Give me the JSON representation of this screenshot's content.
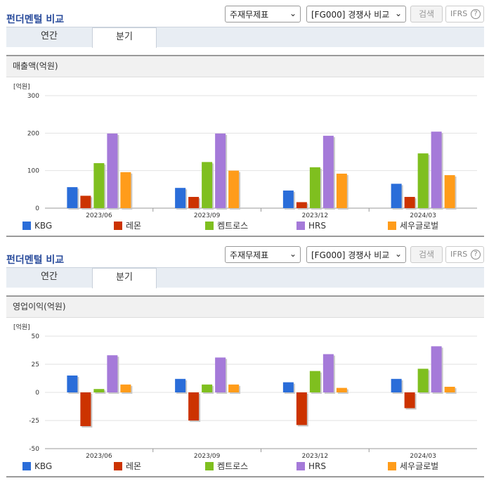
{
  "colors": {
    "title": "#2a4c9c",
    "series": [
      "#2a6dd9",
      "#cc3300",
      "#7fbf1f",
      "#a57ad9",
      "#ff9c1a"
    ]
  },
  "sections": [
    {
      "title": "펀더멘털 비교",
      "select1": "주재무제표",
      "select2": "[FG000] 경쟁사 비교",
      "search_label": "검색",
      "ifrs_label": "IFRS",
      "ifrs_help": "?",
      "tabs": [
        {
          "label": "연간",
          "active": false
        },
        {
          "label": "분기",
          "active": true
        }
      ],
      "panel_title": "매출액(억원)",
      "chart_data": {
        "type": "bar",
        "unit_label": "[억원]",
        "categories": [
          "2023/06",
          "2023/09",
          "2023/12",
          "2024/03"
        ],
        "ylim": [
          0,
          300
        ],
        "yticks": [
          "300",
          "200",
          "100",
          "0"
        ],
        "ytick_values": [
          300,
          200,
          100,
          0
        ],
        "grid": true,
        "legend_position": "bottom",
        "series": [
          {
            "name": "KBG",
            "values": [
              56,
              54,
              47,
              65
            ]
          },
          {
            "name": "레몬",
            "values": [
              33,
              30,
              16,
              30
            ]
          },
          {
            "name": "켐트로스",
            "values": [
              120,
              123,
              109,
              146
            ]
          },
          {
            "name": "HRS",
            "values": [
              199,
              199,
              193,
              204
            ]
          },
          {
            "name": "세우글로벌",
            "values": [
              96,
              100,
              92,
              88
            ]
          }
        ]
      }
    },
    {
      "title": "펀더멘털 비교",
      "select1": "주재무제표",
      "select2": "[FG000] 경쟁사 비교",
      "search_label": "검색",
      "ifrs_label": "IFRS",
      "ifrs_help": "?",
      "tabs": [
        {
          "label": "연간",
          "active": false
        },
        {
          "label": "분기",
          "active": true
        }
      ],
      "panel_title": "영업이익(억원)",
      "chart_data": {
        "type": "bar",
        "unit_label": "[억원]",
        "categories": [
          "2023/06",
          "2023/09",
          "2023/12",
          "2024/03"
        ],
        "ylim": [
          -50,
          50
        ],
        "yticks": [
          "50",
          "25",
          "0",
          "-25",
          "-50"
        ],
        "ytick_values": [
          50,
          25,
          0,
          -25,
          -50
        ],
        "grid": true,
        "legend_position": "bottom",
        "series": [
          {
            "name": "KBG",
            "values": [
              15,
              12,
              9,
              12
            ]
          },
          {
            "name": "레몬",
            "values": [
              -30,
              -25,
              -29,
              -14
            ]
          },
          {
            "name": "켐트로스",
            "values": [
              3,
              7,
              19,
              21
            ]
          },
          {
            "name": "HRS",
            "values": [
              33,
              31,
              34,
              41
            ]
          },
          {
            "name": "세우글로벌",
            "values": [
              7,
              7,
              4,
              5
            ]
          }
        ]
      }
    }
  ]
}
